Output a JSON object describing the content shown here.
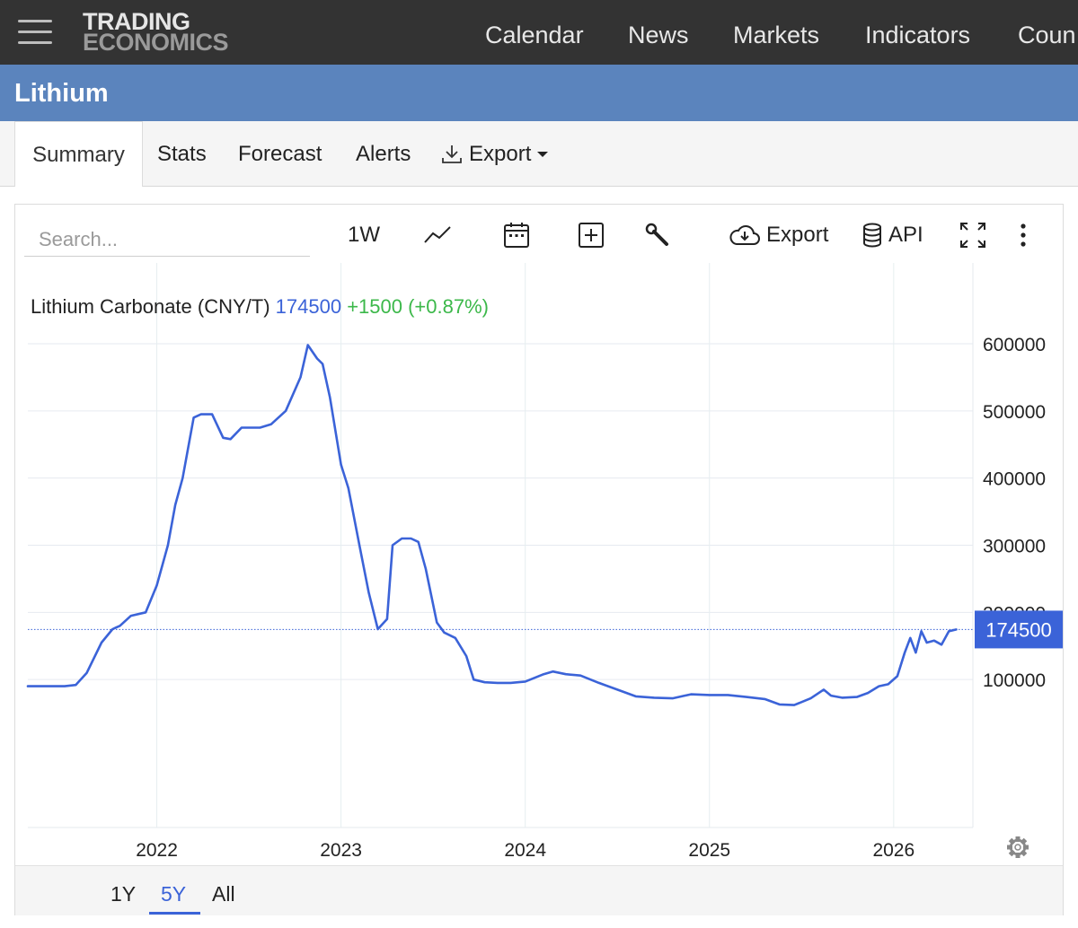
{
  "header": {
    "logo_line1": "TRADING",
    "logo_line2": "ECONOMICS",
    "nav": [
      "Calendar",
      "News",
      "Markets",
      "Indicators",
      "Coun"
    ]
  },
  "page": {
    "title": "Lithium"
  },
  "tabs": [
    "Summary",
    "Stats",
    "Forecast",
    "Alerts",
    "Export"
  ],
  "toolbar": {
    "search_placeholder": "Search...",
    "interval": "1W",
    "export_label": "Export",
    "api_label": "API"
  },
  "chart_info": {
    "name": "Lithium Carbonate (CNY/T)",
    "price": "174500",
    "change": "+1500 (+0.87%)",
    "last_label": "174500"
  },
  "range_buttons": [
    "1Y",
    "5Y",
    "All"
  ],
  "colors": {
    "line": "#3b63d8",
    "change": "#3cb84a",
    "header": "#333333",
    "titlebar": "#5b84bd"
  },
  "chart_data": {
    "type": "line",
    "y_ticks": [
      "600000",
      "500000",
      "400000",
      "300000",
      "200000",
      "100000"
    ],
    "y_tick_values": [
      600000,
      500000,
      400000,
      300000,
      200000,
      100000
    ],
    "x_ticks": [
      "2022",
      "2023",
      "2024",
      "2025",
      "2026"
    ],
    "x_tick_values": [
      2022.0,
      2023.0,
      2024.0,
      2025.0,
      2026.0
    ],
    "xlim": [
      2021.3,
      2026.43
    ],
    "ylim": [
      0,
      600000
    ],
    "last_value": 174500,
    "grid": true,
    "series": [
      {
        "x": [
          2021.3,
          2021.5,
          2021.56,
          2021.62,
          2021.7,
          2021.76,
          2021.8,
          2021.86,
          2021.94,
          2022.0,
          2022.06,
          2022.1,
          2022.14,
          2022.2,
          2022.24,
          2022.3,
          2022.36,
          2022.4,
          2022.46,
          2022.52,
          2022.56,
          2022.62,
          2022.7,
          2022.78,
          2022.82,
          2022.87,
          2022.9,
          2022.94,
          2023.0,
          2023.04,
          2023.1,
          2023.15,
          2023.2,
          2023.25,
          2023.28,
          2023.33,
          2023.38,
          2023.42,
          2023.46,
          2023.52,
          2023.56,
          2023.62,
          2023.68,
          2023.72,
          2023.78,
          2023.85,
          2023.92,
          2024.0,
          2024.1,
          2024.15,
          2024.22,
          2024.3,
          2024.4,
          2024.5,
          2024.6,
          2024.7,
          2024.8,
          2024.9,
          2025.0,
          2025.1,
          2025.2,
          2025.3,
          2025.38,
          2025.46,
          2025.55,
          2025.62,
          2025.66,
          2025.72,
          2025.8,
          2025.86,
          2025.92,
          2025.97,
          2026.02,
          2026.06,
          2026.09,
          2026.12,
          2026.15,
          2026.18,
          2026.22,
          2026.26,
          2026.3,
          2026.34
        ],
        "values": [
          90000,
          90000,
          92000,
          110000,
          155000,
          175000,
          180000,
          195000,
          200000,
          240000,
          300000,
          360000,
          400000,
          490000,
          495000,
          495000,
          460000,
          458000,
          475000,
          475000,
          475000,
          480000,
          500000,
          550000,
          598000,
          578000,
          570000,
          520000,
          420000,
          385000,
          300000,
          230000,
          175000,
          190000,
          300000,
          310000,
          310000,
          305000,
          265000,
          185000,
          170000,
          162000,
          135000,
          100000,
          96000,
          95000,
          95000,
          97000,
          108000,
          112000,
          108000,
          106000,
          95000,
          85000,
          75000,
          73000,
          72000,
          78000,
          77000,
          77000,
          74000,
          71000,
          63000,
          62000,
          72000,
          85000,
          76000,
          73000,
          74000,
          80000,
          90000,
          93000,
          105000,
          140000,
          162000,
          140000,
          172000,
          155000,
          158000,
          152000,
          172000,
          174500
        ]
      }
    ]
  }
}
